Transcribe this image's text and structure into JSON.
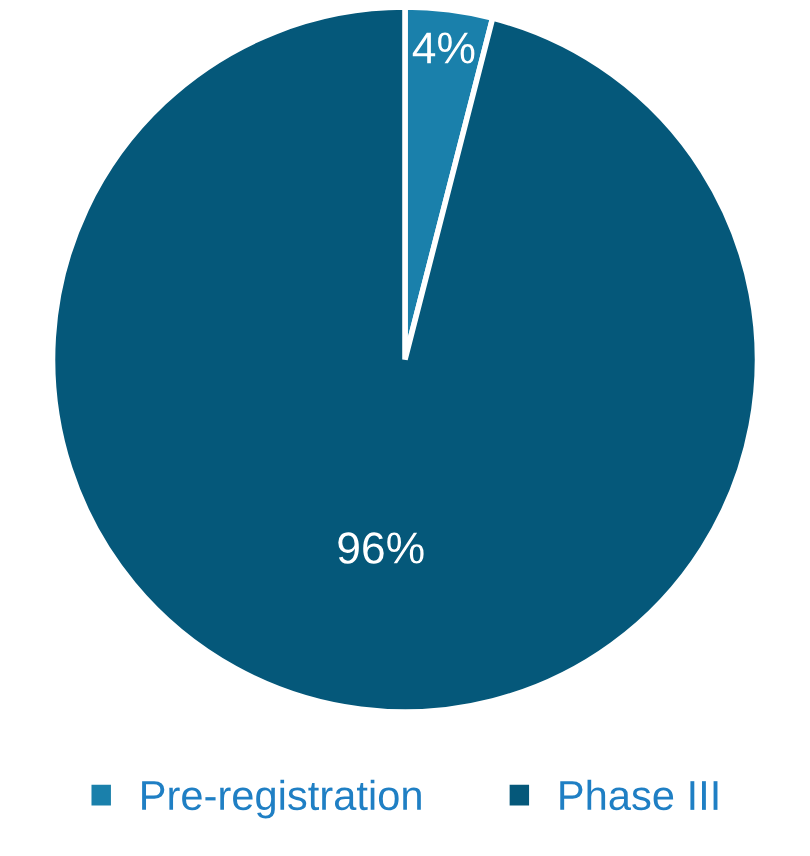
{
  "chart_data": {
    "type": "pie",
    "categories": [
      "Pre-registration",
      "Phase III"
    ],
    "values": [
      4,
      96
    ],
    "value_labels": [
      "4%",
      "96%"
    ],
    "colors": [
      "#1a80ab",
      "#05587a"
    ],
    "legend": "bottom"
  }
}
